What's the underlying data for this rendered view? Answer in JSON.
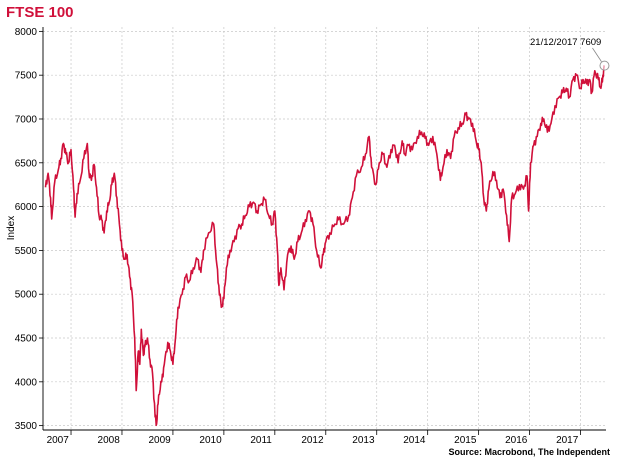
{
  "title": "FTSE 100",
  "source": "Source: Macrobond, The Independent",
  "colors": {
    "title": "#d0103a",
    "line": "#d0103a",
    "grid": "#c8c8c8",
    "axis": "#000000"
  },
  "chart_data": {
    "type": "line",
    "title": "FTSE 100",
    "xlabel": "",
    "ylabel": "Index",
    "ylim": [
      3450,
      8050
    ],
    "yticks": [
      3500,
      4000,
      4500,
      5000,
      5500,
      6000,
      6500,
      7000,
      7500,
      8000
    ],
    "xlim": [
      2006.95,
      2018.0
    ],
    "xtick_labels": [
      "2007",
      "2008",
      "2009",
      "2010",
      "2011",
      "2012",
      "2013",
      "2014",
      "2015",
      "2016",
      "2017"
    ],
    "xgrid": [
      2007.5,
      2008.5,
      2009.5,
      2010.5,
      2011.5,
      2012.5,
      2013.5,
      2014.5,
      2015.5,
      2016.5,
      2017.5
    ],
    "grid": true,
    "annotation": {
      "text": "21/12/2017 7609",
      "x": 2017.97,
      "y": 7609
    },
    "series": [
      {
        "values": [
          [
            2007.0,
            6220
          ],
          [
            2007.05,
            6380
          ],
          [
            2007.1,
            6100
          ],
          [
            2007.12,
            5860
          ],
          [
            2007.18,
            6280
          ],
          [
            2007.25,
            6420
          ],
          [
            2007.3,
            6550
          ],
          [
            2007.35,
            6720
          ],
          [
            2007.4,
            6600
          ],
          [
            2007.45,
            6500
          ],
          [
            2007.5,
            6650
          ],
          [
            2007.55,
            6200
          ],
          [
            2007.58,
            5880
          ],
          [
            2007.62,
            6150
          ],
          [
            2007.68,
            6300
          ],
          [
            2007.75,
            6550
          ],
          [
            2007.82,
            6720
          ],
          [
            2007.85,
            6400
          ],
          [
            2007.9,
            6300
          ],
          [
            2007.95,
            6480
          ],
          [
            2008.0,
            6220
          ],
          [
            2008.05,
            5900
          ],
          [
            2008.1,
            5850
          ],
          [
            2008.15,
            5700
          ],
          [
            2008.2,
            5950
          ],
          [
            2008.25,
            6050
          ],
          [
            2008.3,
            6250
          ],
          [
            2008.35,
            6380
          ],
          [
            2008.4,
            6100
          ],
          [
            2008.45,
            5800
          ],
          [
            2008.5,
            5500
          ],
          [
            2008.55,
            5400
          ],
          [
            2008.6,
            5450
          ],
          [
            2008.65,
            5200
          ],
          [
            2008.7,
            5000
          ],
          [
            2008.75,
            4500
          ],
          [
            2008.78,
            3900
          ],
          [
            2008.82,
            4350
          ],
          [
            2008.85,
            4200
          ],
          [
            2008.88,
            4600
          ],
          [
            2008.92,
            4300
          ],
          [
            2008.95,
            4400
          ],
          [
            2009.0,
            4500
          ],
          [
            2009.05,
            4250
          ],
          [
            2009.1,
            4100
          ],
          [
            2009.15,
            3600
          ],
          [
            2009.18,
            3520
          ],
          [
            2009.22,
            3850
          ],
          [
            2009.28,
            4000
          ],
          [
            2009.33,
            4200
          ],
          [
            2009.4,
            4450
          ],
          [
            2009.45,
            4350
          ],
          [
            2009.5,
            4200
          ],
          [
            2009.55,
            4500
          ],
          [
            2009.6,
            4850
          ],
          [
            2009.68,
            5000
          ],
          [
            2009.75,
            5200
          ],
          [
            2009.82,
            5150
          ],
          [
            2009.9,
            5300
          ],
          [
            2009.98,
            5400
          ],
          [
            2010.05,
            5250
          ],
          [
            2010.1,
            5500
          ],
          [
            2010.2,
            5700
          ],
          [
            2010.3,
            5800
          ],
          [
            2010.35,
            5400
          ],
          [
            2010.4,
            5100
          ],
          [
            2010.45,
            4850
          ],
          [
            2010.5,
            4950
          ],
          [
            2010.55,
            5300
          ],
          [
            2010.62,
            5500
          ],
          [
            2010.7,
            5600
          ],
          [
            2010.78,
            5750
          ],
          [
            2010.85,
            5800
          ],
          [
            2010.92,
            5900
          ],
          [
            2011.0,
            6000
          ],
          [
            2011.08,
            6050
          ],
          [
            2011.15,
            5950
          ],
          [
            2011.22,
            6020
          ],
          [
            2011.3,
            6080
          ],
          [
            2011.38,
            5900
          ],
          [
            2011.45,
            5800
          ],
          [
            2011.5,
            5950
          ],
          [
            2011.55,
            5500
          ],
          [
            2011.58,
            5100
          ],
          [
            2011.62,
            5300
          ],
          [
            2011.68,
            5050
          ],
          [
            2011.75,
            5450
          ],
          [
            2011.82,
            5550
          ],
          [
            2011.88,
            5400
          ],
          [
            2011.95,
            5600
          ],
          [
            2012.02,
            5700
          ],
          [
            2012.1,
            5850
          ],
          [
            2012.18,
            5950
          ],
          [
            2012.25,
            5800
          ],
          [
            2012.32,
            5500
          ],
          [
            2012.4,
            5300
          ],
          [
            2012.45,
            5450
          ],
          [
            2012.5,
            5600
          ],
          [
            2012.58,
            5700
          ],
          [
            2012.68,
            5800
          ],
          [
            2012.75,
            5850
          ],
          [
            2012.85,
            5800
          ],
          [
            2012.95,
            5900
          ],
          [
            2013.02,
            6100
          ],
          [
            2013.1,
            6350
          ],
          [
            2013.2,
            6450
          ],
          [
            2013.28,
            6600
          ],
          [
            2013.35,
            6800
          ],
          [
            2013.4,
            6450
          ],
          [
            2013.48,
            6250
          ],
          [
            2013.55,
            6500
          ],
          [
            2013.62,
            6600
          ],
          [
            2013.7,
            6450
          ],
          [
            2013.78,
            6650
          ],
          [
            2013.85,
            6700
          ],
          [
            2013.92,
            6500
          ],
          [
            2014.0,
            6750
          ],
          [
            2014.05,
            6600
          ],
          [
            2014.12,
            6700
          ],
          [
            2014.2,
            6650
          ],
          [
            2014.3,
            6800
          ],
          [
            2014.38,
            6850
          ],
          [
            2014.45,
            6780
          ],
          [
            2014.52,
            6700
          ],
          [
            2014.6,
            6800
          ],
          [
            2014.68,
            6600
          ],
          [
            2014.75,
            6300
          ],
          [
            2014.8,
            6450
          ],
          [
            2014.88,
            6650
          ],
          [
            2014.95,
            6550
          ],
          [
            2015.02,
            6800
          ],
          [
            2015.1,
            6900
          ],
          [
            2015.18,
            6950
          ],
          [
            2015.25,
            7050
          ],
          [
            2015.3,
            7000
          ],
          [
            2015.38,
            6950
          ],
          [
            2015.45,
            6750
          ],
          [
            2015.5,
            6650
          ],
          [
            2015.55,
            6500
          ],
          [
            2015.6,
            6100
          ],
          [
            2015.65,
            5950
          ],
          [
            2015.7,
            6200
          ],
          [
            2015.78,
            6400
          ],
          [
            2015.85,
            6300
          ],
          [
            2015.92,
            6100
          ],
          [
            2015.98,
            6200
          ],
          [
            2016.05,
            5900
          ],
          [
            2016.1,
            5600
          ],
          [
            2016.15,
            6100
          ],
          [
            2016.22,
            6150
          ],
          [
            2016.3,
            6250
          ],
          [
            2016.38,
            6200
          ],
          [
            2016.45,
            6350
          ],
          [
            2016.48,
            5950
          ],
          [
            2016.52,
            6500
          ],
          [
            2016.58,
            6700
          ],
          [
            2016.65,
            6800
          ],
          [
            2016.72,
            6950
          ],
          [
            2016.78,
            7000
          ],
          [
            2016.85,
            6850
          ],
          [
            2016.92,
            6950
          ],
          [
            2017.0,
            7150
          ],
          [
            2017.08,
            7250
          ],
          [
            2017.15,
            7300
          ],
          [
            2017.22,
            7350
          ],
          [
            2017.28,
            7250
          ],
          [
            2017.35,
            7450
          ],
          [
            2017.42,
            7500
          ],
          [
            2017.5,
            7350
          ],
          [
            2017.55,
            7450
          ],
          [
            2017.62,
            7400
          ],
          [
            2017.68,
            7450
          ],
          [
            2017.72,
            7300
          ],
          [
            2017.78,
            7550
          ],
          [
            2017.85,
            7450
          ],
          [
            2017.9,
            7350
          ],
          [
            2017.94,
            7500
          ],
          [
            2017.97,
            7609
          ]
        ]
      }
    ]
  }
}
